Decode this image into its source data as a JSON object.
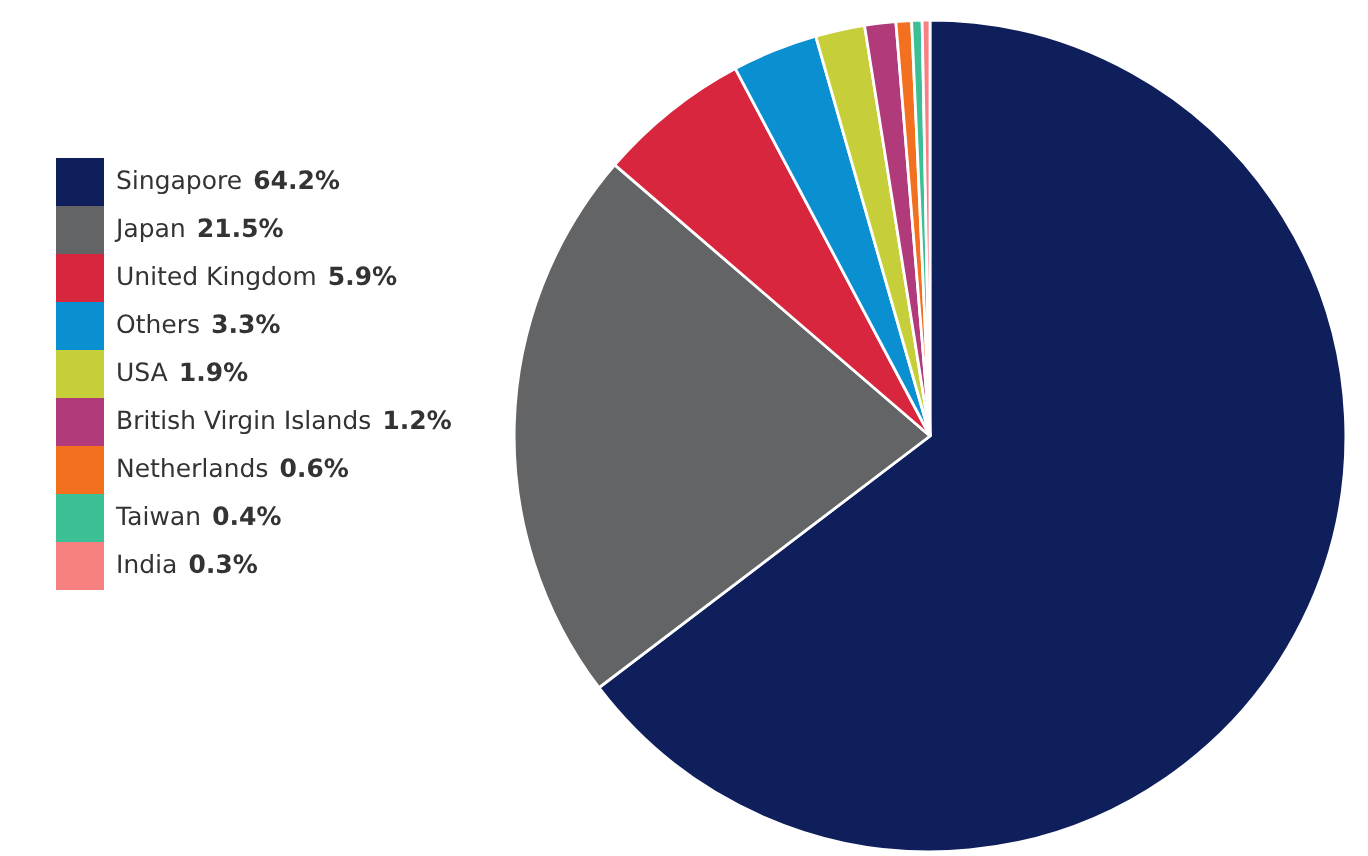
{
  "chart_data": {
    "type": "pie",
    "categories": [
      "Singapore",
      "Japan",
      "United Kingdom",
      "Others",
      "USA",
      "British Virgin Islands",
      "Netherlands",
      "Taiwan",
      "India"
    ],
    "values": [
      64.2,
      21.5,
      5.9,
      3.3,
      1.9,
      1.2,
      0.6,
      0.4,
      0.3
    ],
    "value_labels": [
      "64.2%",
      "21.5%",
      "5.9%",
      "3.3%",
      "1.9%",
      "1.2%",
      "0.6%",
      "0.4%",
      "0.3%"
    ],
    "colors": [
      "#0e1f5b",
      "#636466",
      "#d7263d",
      "#0a8fd0",
      "#c6cf3a",
      "#b03a7a",
      "#f37021",
      "#3cbf94",
      "#f78080"
    ],
    "legend": "left"
  }
}
